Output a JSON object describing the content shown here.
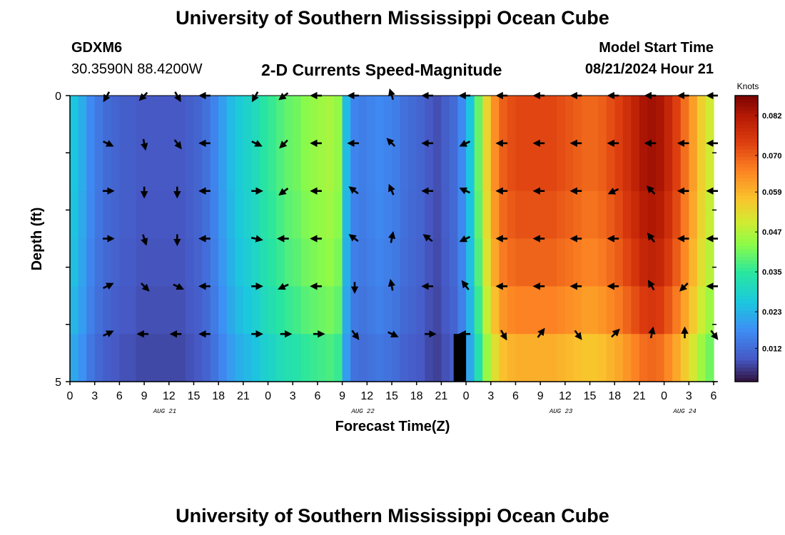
{
  "header": {
    "title": "University of Southern Mississippi Ocean Cube",
    "station": "GDXM6",
    "coords": "30.3590N  88.4200W",
    "subtitle": "2-D Currents Speed-Magnitude",
    "model_start_label": "Model Start Time",
    "model_start_value": "08/21/2024 Hour 21"
  },
  "footer": {
    "title": "University of Southern Mississippi Ocean Cube"
  },
  "chart_data": {
    "type": "heatmap",
    "title": "2-D Currents Speed-Magnitude",
    "xlabel": "Forecast Time(Z)",
    "ylabel": "Depth (ft)",
    "colorbar_label": "Knots",
    "colorbar_ticks": [
      "0.012",
      "0.023",
      "0.035",
      "0.047",
      "0.059",
      "0.070",
      "0.082"
    ],
    "colorbar_range": [
      0.002,
      0.088
    ],
    "ylim": [
      0,
      5
    ],
    "y_tick_labels": [
      "0",
      "5"
    ],
    "x_tick_labels": [
      "0",
      "3",
      "6",
      "9",
      "12",
      "15",
      "18",
      "21",
      "0",
      "3",
      "6",
      "9",
      "12",
      "15",
      "18",
      "21",
      "0",
      "3",
      "6",
      "9",
      "12",
      "15",
      "18",
      "21",
      "0",
      "3",
      "6"
    ],
    "x_range_hours": [
      0,
      78
    ],
    "date_labels": [
      {
        "hour": 11.5,
        "label": "AUG 21"
      },
      {
        "hour": 35.5,
        "label": "AUG 22"
      },
      {
        "hour": 59.5,
        "label": "AUG 23"
      },
      {
        "hour": 74.5,
        "label": "AUG 24"
      }
    ],
    "speed_profile_hours": [
      0,
      1,
      2,
      3,
      4,
      5,
      6,
      7,
      8,
      9,
      10,
      11,
      12,
      13,
      14,
      15,
      16,
      17,
      18,
      19,
      20,
      21,
      22,
      23,
      24,
      25,
      26,
      27,
      28,
      29,
      30,
      31,
      32,
      33,
      34,
      35,
      36,
      37,
      38,
      39,
      40,
      41,
      42,
      43,
      44,
      45,
      46,
      47,
      48,
      49,
      50,
      51,
      52,
      53,
      54,
      55,
      56,
      57,
      58,
      59,
      60,
      61,
      62,
      63,
      64,
      65,
      66,
      67,
      68,
      69,
      70,
      71,
      72,
      73,
      74,
      75,
      76,
      77,
      78
    ],
    "speed_profile_surface": [
      0.026,
      0.022,
      0.017,
      0.014,
      0.012,
      0.011,
      0.01,
      0.01,
      0.009,
      0.009,
      0.009,
      0.009,
      0.009,
      0.009,
      0.01,
      0.011,
      0.013,
      0.016,
      0.02,
      0.024,
      0.027,
      0.029,
      0.031,
      0.034,
      0.036,
      0.038,
      0.04,
      0.041,
      0.043,
      0.044,
      0.045,
      0.046,
      0.044,
      0.024,
      0.016,
      0.015,
      0.016,
      0.017,
      0.016,
      0.015,
      0.013,
      0.012,
      0.011,
      0.009,
      0.008,
      0.01,
      0.012,
      0.017,
      0.026,
      0.04,
      0.054,
      0.064,
      0.07,
      0.072,
      0.073,
      0.073,
      0.073,
      0.073,
      0.073,
      0.072,
      0.071,
      0.07,
      0.069,
      0.069,
      0.07,
      0.072,
      0.074,
      0.077,
      0.08,
      0.083,
      0.084,
      0.083,
      0.079,
      0.074,
      0.068,
      0.062,
      0.055,
      0.05,
      0.046
    ],
    "depth_factors": [
      1.0,
      1.0,
      0.98,
      0.95,
      0.9,
      0.82
    ],
    "vectors_hours": [
      4.5,
      9.0,
      13.0,
      16.5,
      22.5,
      26.0,
      30.0,
      34.5,
      39.0,
      43.5,
      48.0,
      52.5,
      57.0,
      61.5,
      66.0,
      70.5,
      74.5,
      78.0
    ],
    "vectors": [
      [
        [
          -0.5,
          0.86
        ],
        [
          -0.7,
          0.7
        ],
        [
          0.5,
          0.86
        ],
        [
          -1,
          0
        ],
        [
          -0.5,
          0.86
        ],
        [
          -0.8,
          0.6
        ],
        [
          -1,
          0
        ],
        [
          -1,
          0
        ],
        [
          -0.3,
          -0.95
        ],
        [
          -1,
          0
        ],
        [
          -1,
          0
        ],
        [
          -1,
          0
        ],
        [
          -1,
          0
        ],
        [
          -1,
          0
        ],
        [
          -1,
          0
        ],
        [
          -1,
          0
        ],
        [
          -1,
          0
        ],
        [
          -1,
          0
        ]
      ],
      [
        [
          0.9,
          0.43
        ],
        [
          0.2,
          0.98
        ],
        [
          0.6,
          0.8
        ],
        [
          -1,
          0
        ],
        [
          0.9,
          0.43
        ],
        [
          -0.7,
          0.7
        ],
        [
          -1,
          0
        ],
        [
          -1,
          0
        ],
        [
          -0.7,
          -0.7
        ],
        [
          -1,
          0
        ],
        [
          -0.9,
          0.43
        ],
        [
          -1,
          0
        ],
        [
          -1,
          0
        ],
        [
          -1,
          0
        ],
        [
          -1,
          0
        ],
        [
          -1,
          0
        ],
        [
          -1,
          0
        ],
        [
          -1,
          0
        ]
      ],
      [
        [
          1,
          0
        ],
        [
          0,
          1
        ],
        [
          0,
          1
        ],
        [
          -1,
          0
        ],
        [
          1,
          0
        ],
        [
          -0.8,
          0.6
        ],
        [
          -1,
          0
        ],
        [
          -0.8,
          -0.6
        ],
        [
          -0.4,
          -0.92
        ],
        [
          -1,
          0
        ],
        [
          -0.9,
          -0.43
        ],
        [
          -1,
          0
        ],
        [
          -1,
          0
        ],
        [
          -1,
          0
        ],
        [
          -0.9,
          0.43
        ],
        [
          -0.7,
          -0.7
        ],
        [
          -1,
          0
        ],
        [
          -1,
          0
        ]
      ],
      [
        [
          1,
          0
        ],
        [
          0.3,
          0.95
        ],
        [
          0,
          1
        ],
        [
          -1,
          0
        ],
        [
          1,
          0.2
        ],
        [
          -1,
          0
        ],
        [
          -1,
          0
        ],
        [
          -0.8,
          -0.6
        ],
        [
          0.2,
          -0.98
        ],
        [
          -0.8,
          -0.6
        ],
        [
          -0.9,
          0.43
        ],
        [
          -1,
          0
        ],
        [
          -1,
          0
        ],
        [
          -1,
          0
        ],
        [
          -1,
          0
        ],
        [
          -0.6,
          -0.8
        ],
        [
          -1,
          0
        ],
        [
          -1,
          0
        ]
      ],
      [
        [
          0.9,
          -0.43
        ],
        [
          0.7,
          0.7
        ],
        [
          0.9,
          0.43
        ],
        [
          -1,
          0
        ],
        [
          1,
          0
        ],
        [
          -0.9,
          0.43
        ],
        [
          -1,
          0
        ],
        [
          0,
          1
        ],
        [
          -0.2,
          -0.98
        ],
        [
          -1,
          0
        ],
        [
          -0.6,
          -0.8
        ],
        [
          -1,
          0
        ],
        [
          -1,
          0
        ],
        [
          -1,
          0
        ],
        [
          -1,
          0
        ],
        [
          -0.5,
          -0.86
        ],
        [
          -0.7,
          0.7
        ],
        [
          -1,
          0
        ]
      ],
      [
        [
          0.9,
          -0.43
        ],
        [
          -1,
          0
        ],
        [
          -1,
          0
        ],
        [
          -1,
          0
        ],
        [
          1,
          0
        ],
        [
          1,
          0
        ],
        [
          1,
          0
        ],
        [
          0.6,
          0.8
        ],
        [
          0.9,
          0.43
        ],
        [
          1,
          0
        ],
        [
          -1,
          0
        ],
        [
          0.5,
          0.86
        ],
        [
          0.6,
          -0.8
        ],
        [
          0.6,
          0.8
        ],
        [
          0.7,
          -0.7
        ],
        [
          0.2,
          -0.98
        ],
        [
          0,
          -1
        ],
        [
          0.6,
          0.8
        ]
      ]
    ]
  }
}
